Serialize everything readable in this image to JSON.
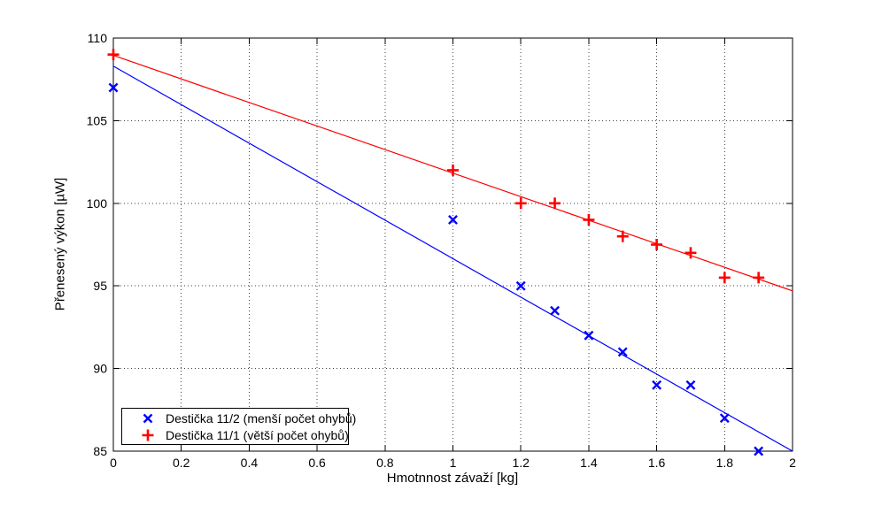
{
  "window": {
    "background": "#ffffff"
  },
  "chart_data": {
    "type": "scatter",
    "title": "",
    "xlabel": "Hmotnnost závaží [kg]",
    "ylabel": "Přenesený výkon [µW]",
    "xlim": [
      0,
      2
    ],
    "ylim": [
      85,
      110
    ],
    "grid": true,
    "legend_position": "inside-bottom-left",
    "x_ticks": [
      0,
      0.2,
      0.4,
      0.6,
      0.8,
      1,
      1.2,
      1.4,
      1.6,
      1.8,
      2
    ],
    "x_tick_labels": [
      "0",
      "0.2",
      "0.4",
      "0.6",
      "0.8",
      "1",
      "1.2",
      "1.4",
      "1.6",
      "1.8",
      "2"
    ],
    "y_ticks": [
      85,
      90,
      95,
      100,
      105,
      110
    ],
    "y_tick_labels": [
      "85",
      "90",
      "95",
      "100",
      "105",
      "110"
    ],
    "axis_color": "#000000",
    "grid_color": "#404040",
    "series": [
      {
        "name": "Destička 11/2 (menší počet ohybů)",
        "marker": "x",
        "color": "#0000ff",
        "points": [
          [
            0,
            107
          ],
          [
            1,
            99
          ],
          [
            1.2,
            95
          ],
          [
            1.3,
            93.5
          ],
          [
            1.4,
            92
          ],
          [
            1.5,
            91
          ],
          [
            1.6,
            89
          ],
          [
            1.7,
            89
          ],
          [
            1.8,
            87
          ],
          [
            1.9,
            85
          ]
        ],
        "trendline": {
          "x": [
            0,
            2
          ],
          "y": [
            108.3,
            85.0
          ]
        }
      },
      {
        "name": "Destička 11/1 (větší počet ohybů)",
        "marker": "+",
        "color": "#ff0000",
        "points": [
          [
            0,
            109
          ],
          [
            1,
            102
          ],
          [
            1.2,
            100
          ],
          [
            1.3,
            100
          ],
          [
            1.4,
            99
          ],
          [
            1.5,
            98
          ],
          [
            1.6,
            97.5
          ],
          [
            1.7,
            97
          ],
          [
            1.8,
            95.5
          ],
          [
            1.9,
            95.5
          ]
        ],
        "trendline": {
          "x": [
            0,
            2
          ],
          "y": [
            108.95,
            94.7
          ]
        }
      }
    ]
  }
}
